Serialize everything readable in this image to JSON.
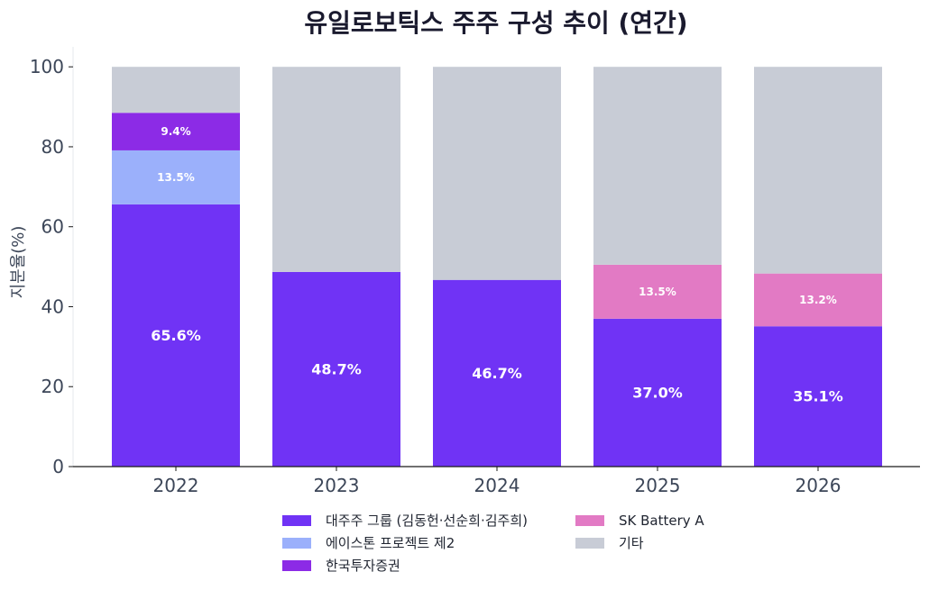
{
  "chart_data": {
    "type": "bar",
    "stacked": true,
    "title": "유일로보틱스 주주 구성 추이 (연간)",
    "xlabel": "",
    "ylabel": "지분율(%)",
    "ylim": [
      0,
      105
    ],
    "yticks": [
      0,
      20,
      40,
      60,
      80,
      100
    ],
    "categories": [
      "2022",
      "2023",
      "2024",
      "2025",
      "2026"
    ],
    "series": [
      {
        "name": "대주주 그룹 (김동헌·선순희·김주희)",
        "color": "#7033f5",
        "values": [
          65.6,
          48.7,
          46.7,
          37.0,
          35.1
        ],
        "labels": [
          "65.6%",
          "48.7%",
          "46.7%",
          "37.0%",
          "35.1%"
        ]
      },
      {
        "name": "에이스톤 프로젝트 제2",
        "color": "#9bb0fb",
        "values": [
          13.5,
          0,
          0,
          0,
          0
        ],
        "labels": [
          "13.5%",
          "",
          "",
          "",
          ""
        ]
      },
      {
        "name": "한국투자증권",
        "color": "#8c2be6",
        "values": [
          9.4,
          0,
          0,
          0,
          0
        ],
        "labels": [
          "9.4%",
          "",
          "",
          "",
          ""
        ]
      },
      {
        "name": "SK Battery A",
        "color": "#e27ac4",
        "values": [
          0,
          0,
          0,
          13.5,
          13.2
        ],
        "labels": [
          "",
          "",
          "",
          "13.5%",
          "13.2%"
        ]
      },
      {
        "name": "기타",
        "color": "#c8ccd6",
        "values": [
          11.5,
          51.3,
          53.3,
          49.5,
          51.7
        ],
        "labels": [
          "",
          "",
          "",
          "",
          ""
        ]
      }
    ],
    "legend": {
      "placement": "bottom",
      "columns": 2
    },
    "grid": false
  }
}
